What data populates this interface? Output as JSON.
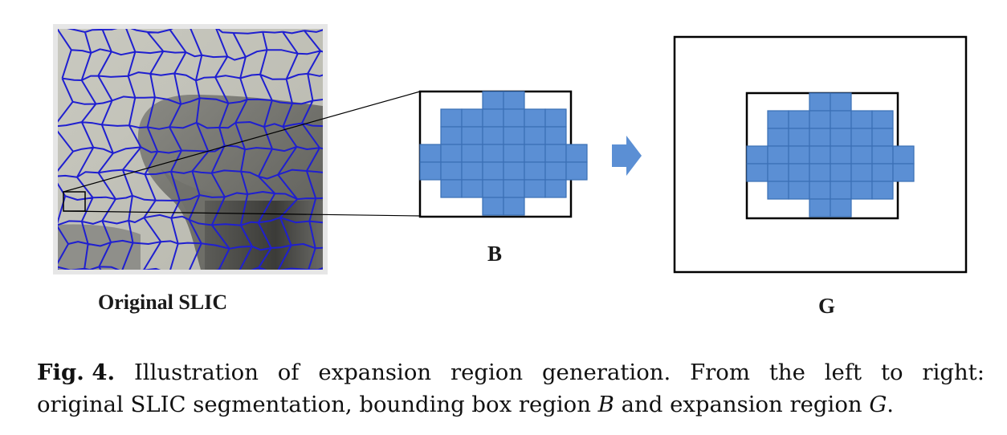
{
  "labels": {
    "original": "Original SLIC",
    "bounding_box": "B",
    "expansion": "G"
  },
  "caption": {
    "fig_number": "Fig. 4.",
    "line1_words": [
      "Illustration",
      "of",
      "expansion",
      "region",
      "generation.",
      "From",
      "the",
      "left",
      "to",
      "right:"
    ],
    "line2_prefix": "original SLIC segmentation, bounding box region ",
    "var_b": "B",
    "line2_middle": " and expansion region ",
    "var_g": "G",
    "line2_suffix": "."
  },
  "colors": {
    "superpixel_boundary": "#1f1fd0",
    "pixel_fill": "#5b8fd4",
    "pixel_border": "#3a6fb5",
    "frame": "#000000",
    "arrow": "#5b8fd4"
  }
}
